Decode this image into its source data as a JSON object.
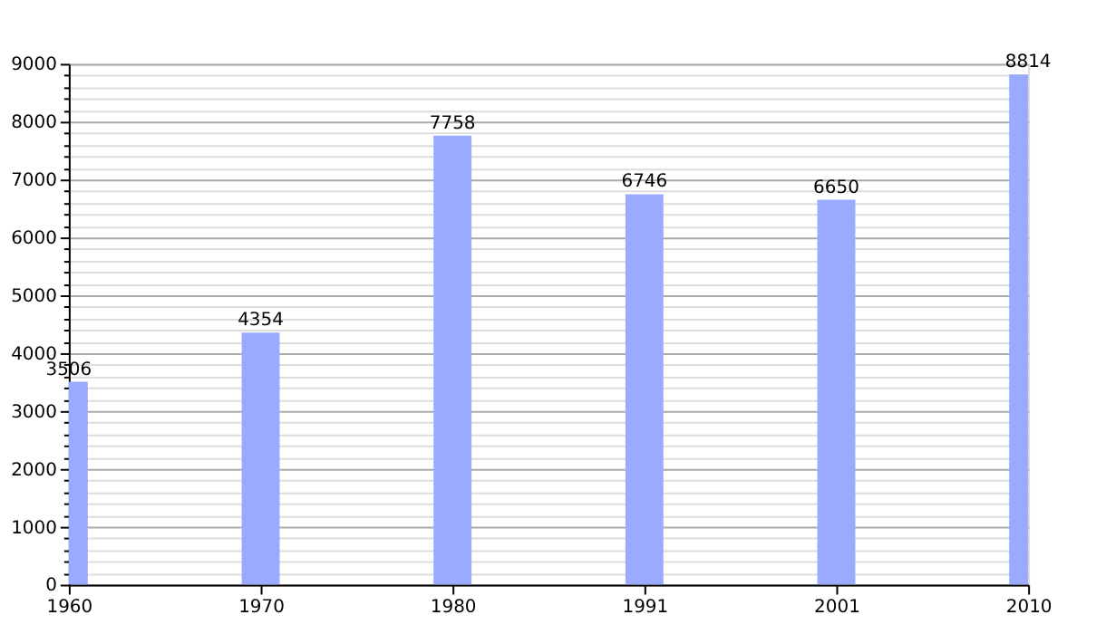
{
  "chart_data": {
    "type": "bar",
    "categories": [
      "1960",
      "1970",
      "1980",
      "1991",
      "2001",
      "2010"
    ],
    "values": [
      3506,
      4354,
      7758,
      6746,
      6650,
      8814
    ],
    "color": "#99aaff",
    "data_labels": true,
    "grid": "y",
    "ylim": [
      0,
      9000
    ],
    "yticks": [
      0,
      {
        "value": 200,
        "label": null
      },
      {
        "value": 400,
        "label": null
      },
      {
        "value": 600,
        "label": null
      },
      {
        "value": 800,
        "label": null
      },
      1000,
      {
        "value": 1200,
        "label": null
      },
      {
        "value": 1400,
        "label": null
      },
      {
        "value": 1600,
        "label": null
      },
      {
        "value": 1800,
        "label": null
      },
      2000,
      {
        "value": 2200,
        "label": null
      },
      {
        "value": 2400,
        "label": null
      },
      {
        "value": 2600,
        "label": null
      },
      {
        "value": 2800,
        "label": null
      },
      3000,
      {
        "value": 3200,
        "label": null
      },
      {
        "value": 3400,
        "label": null
      },
      {
        "value": 3600,
        "label": null
      },
      {
        "value": 3800,
        "label": null
      },
      4000,
      {
        "value": 4200,
        "label": null
      },
      {
        "value": 4400,
        "label": null
      },
      {
        "value": 4600,
        "label": null
      },
      {
        "value": 4800,
        "label": null
      },
      5000,
      {
        "value": 5200,
        "label": null
      },
      {
        "value": 5400,
        "label": null
      },
      {
        "value": 5600,
        "label": null
      },
      {
        "value": 5800,
        "label": null
      },
      6000,
      {
        "value": 6200,
        "label": null
      },
      {
        "value": 6400,
        "label": null
      },
      {
        "value": 6600,
        "label": null
      },
      {
        "value": 6800,
        "label": null
      },
      7000,
      {
        "value": 7200,
        "label": null
      },
      {
        "value": 7400,
        "label": null
      },
      {
        "value": 7600,
        "label": null
      },
      {
        "value": 7800,
        "label": null
      },
      8000,
      {
        "value": 8200,
        "label": null
      },
      {
        "value": 8400,
        "label": null
      },
      {
        "value": 8600,
        "label": null
      },
      {
        "value": 8800,
        "label": null
      },
      9000
    ]
  }
}
